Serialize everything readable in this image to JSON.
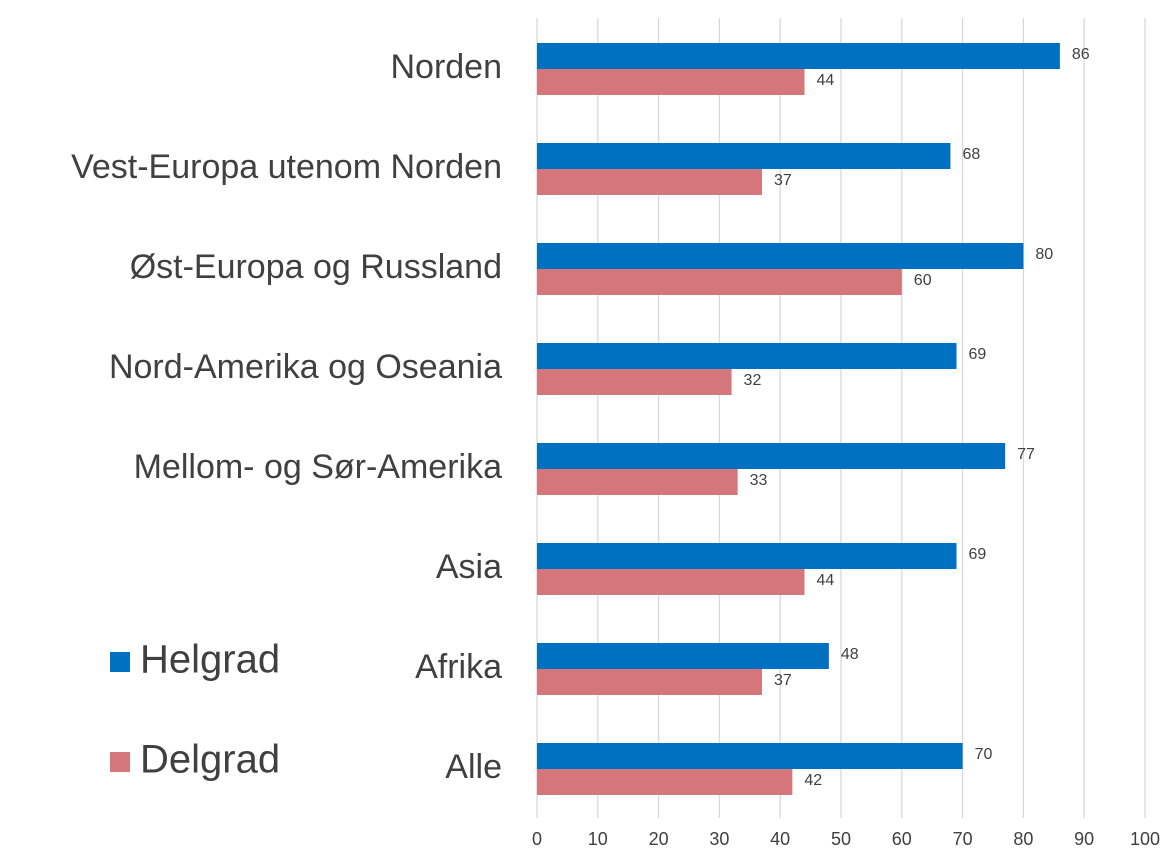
{
  "chart_data": {
    "type": "bar",
    "orientation": "horizontal",
    "categories": [
      "Norden",
      "Vest-Europa utenom Norden",
      "Øst-Europa og Russland",
      "Nord-Amerika og Oseania",
      "Mellom- og Sør-Amerika",
      "Asia",
      "Afrika",
      "Alle"
    ],
    "series": [
      {
        "name": "Helgrad",
        "color": "#0070c0",
        "values": [
          86,
          68,
          80,
          69,
          77,
          69,
          48,
          70
        ]
      },
      {
        "name": "Delgrad",
        "color": "#d5777a",
        "values": [
          44,
          37,
          60,
          32,
          33,
          44,
          37,
          42
        ]
      }
    ],
    "xlim": [
      0,
      100
    ],
    "xticks": [
      0,
      10,
      20,
      30,
      40,
      50,
      60,
      70,
      80,
      90,
      100
    ],
    "grid": true,
    "legend": "left",
    "data_labels": true
  }
}
